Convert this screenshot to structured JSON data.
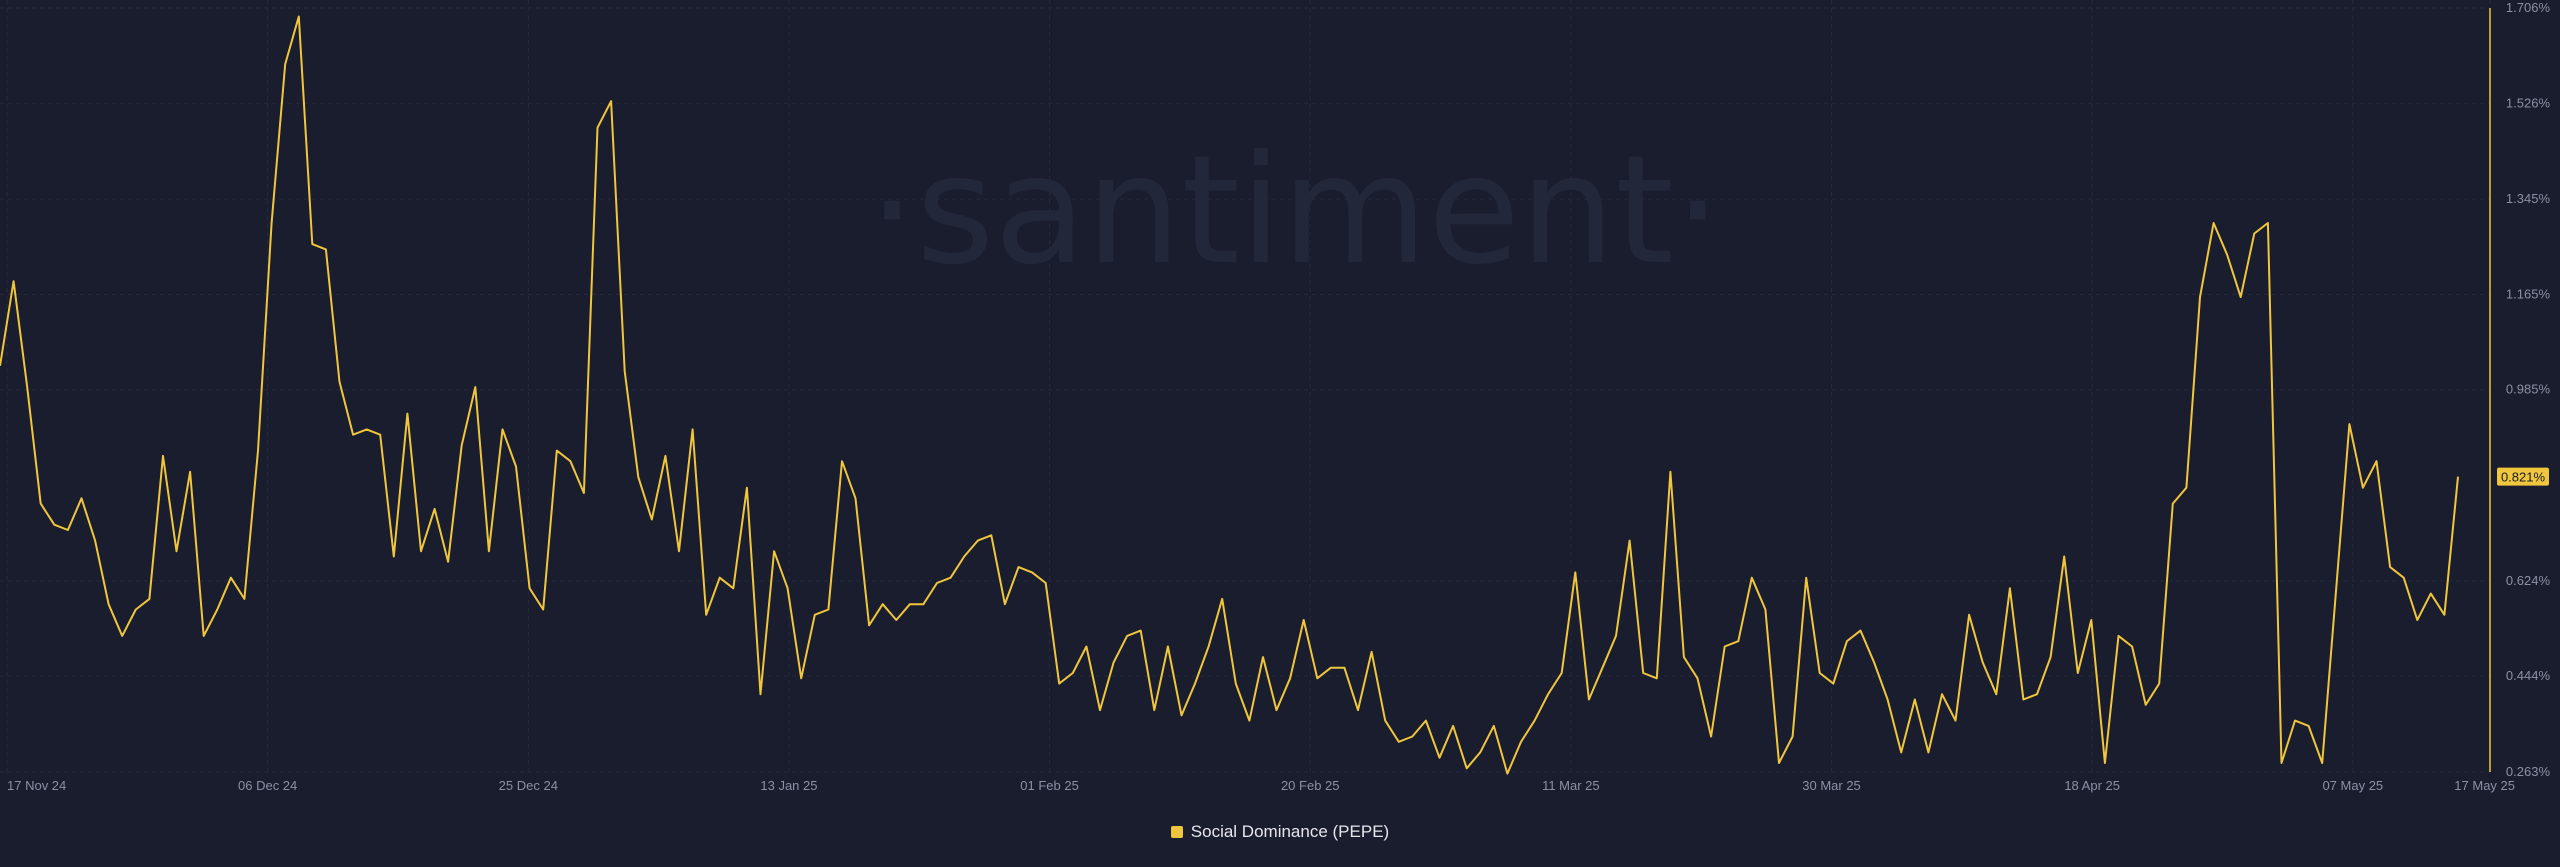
{
  "chart_data": {
    "type": "line",
    "watermark": "·santiment·",
    "series": [
      {
        "name": "Social Dominance (PEPE)",
        "color": "#f0c63c",
        "values": [
          1.03,
          1.19,
          0.99,
          0.77,
          0.73,
          0.72,
          0.78,
          0.7,
          0.58,
          0.52,
          0.57,
          0.59,
          0.86,
          0.68,
          0.83,
          0.52,
          0.57,
          0.63,
          0.59,
          0.87,
          1.3,
          1.6,
          1.69,
          1.26,
          1.25,
          1.0,
          0.9,
          0.91,
          0.9,
          0.67,
          0.94,
          0.68,
          0.76,
          0.66,
          0.88,
          0.99,
          0.68,
          0.91,
          0.84,
          0.61,
          0.57,
          0.87,
          0.85,
          0.79,
          1.48,
          1.53,
          1.02,
          0.82,
          0.74,
          0.86,
          0.68,
          0.91,
          0.56,
          0.63,
          0.61,
          0.8,
          0.41,
          0.68,
          0.61,
          0.44,
          0.56,
          0.57,
          0.85,
          0.78,
          0.54,
          0.58,
          0.55,
          0.58,
          0.58,
          0.62,
          0.63,
          0.67,
          0.7,
          0.71,
          0.58,
          0.65,
          0.64,
          0.62,
          0.43,
          0.45,
          0.5,
          0.38,
          0.47,
          0.52,
          0.53,
          0.38,
          0.5,
          0.37,
          0.43,
          0.5,
          0.59,
          0.43,
          0.36,
          0.48,
          0.38,
          0.44,
          0.55,
          0.44,
          0.46,
          0.46,
          0.38,
          0.49,
          0.36,
          0.32,
          0.33,
          0.36,
          0.29,
          0.35,
          0.27,
          0.3,
          0.35,
          0.26,
          0.32,
          0.36,
          0.41,
          0.45,
          0.64,
          0.4,
          0.46,
          0.52,
          0.7,
          0.45,
          0.44,
          0.83,
          0.48,
          0.44,
          0.33,
          0.5,
          0.51,
          0.63,
          0.57,
          0.28,
          0.33,
          0.63,
          0.45,
          0.43,
          0.51,
          0.53,
          0.47,
          0.4,
          0.3,
          0.4,
          0.3,
          0.41,
          0.36,
          0.56,
          0.47,
          0.41,
          0.61,
          0.4,
          0.41,
          0.48,
          0.67,
          0.45,
          0.55,
          0.28,
          0.52,
          0.5,
          0.39,
          0.43,
          0.77,
          0.8,
          1.16,
          1.3,
          1.24,
          1.16,
          1.28,
          1.3,
          0.28,
          0.36,
          0.35,
          0.28,
          0.6,
          0.92,
          0.8,
          0.85,
          0.65,
          0.63,
          0.55,
          0.6,
          0.56,
          0.821
        ]
      }
    ],
    "x_start": "2024-11-17",
    "x_end": "2025-05-17",
    "x_ticks": [
      "17 Nov 24",
      "06 Dec 24",
      "25 Dec 24",
      "13 Jan 25",
      "01 Feb 25",
      "20 Feb 25",
      "11 Mar 25",
      "30 Mar 25",
      "18 Apr 25",
      "07 May 25",
      "17 May 25"
    ],
    "y_ticks": [
      "0.263%",
      "0.444%",
      "0.624%",
      "0.985%",
      "1.165%",
      "1.345%",
      "1.526%",
      "1.706%"
    ],
    "ylim": [
      0.263,
      1.706
    ],
    "y_unit": "%",
    "last_value_label": "0.821%",
    "grid": true,
    "legend_position": "bottom-center"
  },
  "style": {
    "background": "#1a1d2e",
    "grid_color": "#262a3c",
    "tick_color": "#8c90a3",
    "line_color": "#f0c63c"
  }
}
